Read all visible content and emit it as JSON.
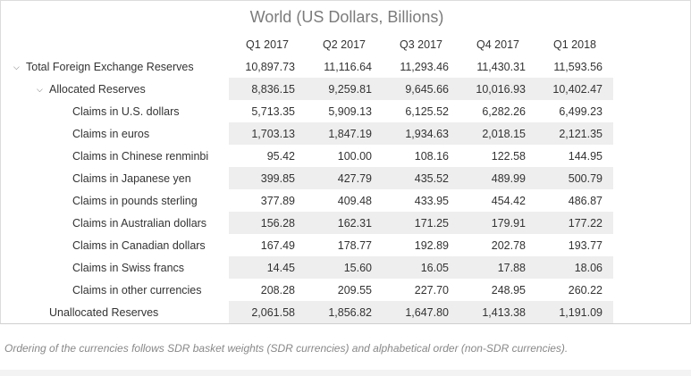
{
  "title": "World (US Dollars, Billions)",
  "columns": [
    "Q1 2017",
    "Q2 2017",
    "Q3 2017",
    "Q4 2017",
    "Q1 2018"
  ],
  "rows": [
    {
      "label": "Total Foreign Exchange Reserves",
      "values": [
        "10,897.73",
        "11,116.64",
        "11,293.46",
        "11,430.31",
        "11,593.56"
      ]
    },
    {
      "label": "Allocated Reserves",
      "values": [
        "8,836.15",
        "9,259.81",
        "9,645.66",
        "10,016.93",
        "10,402.47"
      ]
    },
    {
      "label": "Claims in U.S. dollars",
      "values": [
        "5,713.35",
        "5,909.13",
        "6,125.52",
        "6,282.26",
        "6,499.23"
      ]
    },
    {
      "label": "Claims in euros",
      "values": [
        "1,703.13",
        "1,847.19",
        "1,934.63",
        "2,018.15",
        "2,121.35"
      ]
    },
    {
      "label": "Claims in Chinese renminbi",
      "values": [
        "95.42",
        "100.00",
        "108.16",
        "122.58",
        "144.95"
      ]
    },
    {
      "label": "Claims in Japanese yen",
      "values": [
        "399.85",
        "427.79",
        "435.52",
        "489.99",
        "500.79"
      ]
    },
    {
      "label": "Claims in pounds sterling",
      "values": [
        "377.89",
        "409.48",
        "433.95",
        "454.42",
        "486.87"
      ]
    },
    {
      "label": "Claims in Australian dollars",
      "values": [
        "156.28",
        "162.31",
        "171.25",
        "179.91",
        "177.22"
      ]
    },
    {
      "label": "Claims in Canadian dollars",
      "values": [
        "167.49",
        "178.77",
        "192.89",
        "202.78",
        "193.77"
      ]
    },
    {
      "label": "Claims in Swiss francs",
      "values": [
        "14.45",
        "15.60",
        "16.05",
        "17.88",
        "18.06"
      ]
    },
    {
      "label": "Claims in other currencies",
      "values": [
        "208.28",
        "209.55",
        "227.70",
        "248.95",
        "260.22"
      ]
    },
    {
      "label": "Unallocated Reserves",
      "values": [
        "2,061.58",
        "1,856.82",
        "1,647.80",
        "1,413.38",
        "1,191.09"
      ]
    }
  ],
  "footnote": "Ordering of the currencies follows SDR basket weights (SDR currencies) and alphabetical order (non-SDR currencies)."
}
